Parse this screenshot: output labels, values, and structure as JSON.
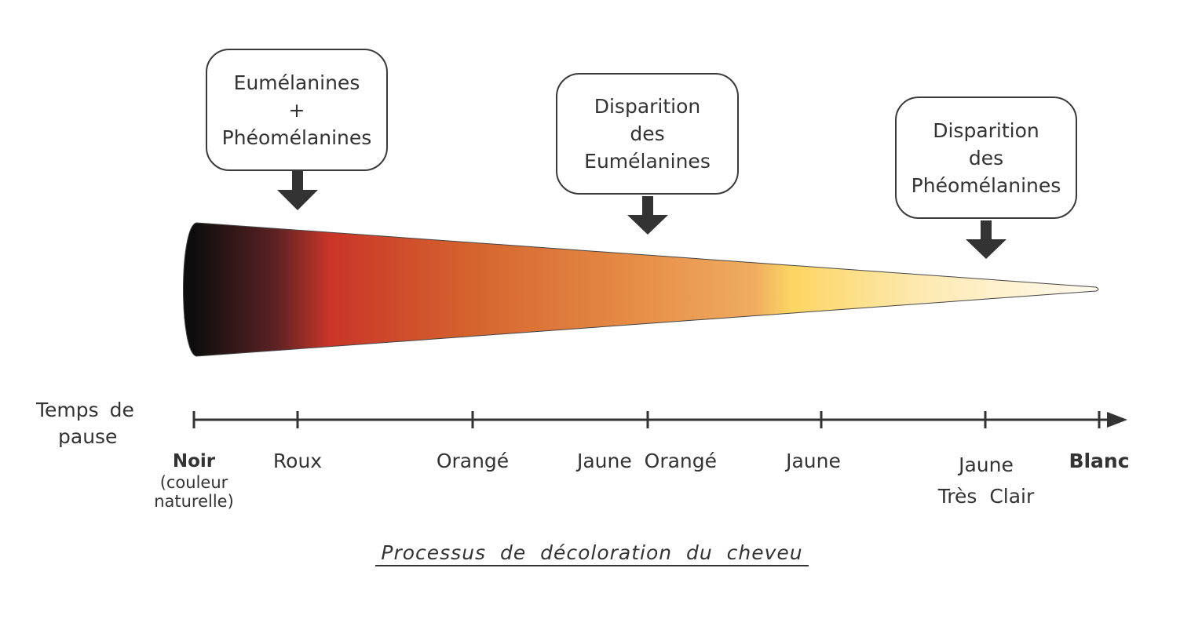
{
  "callouts": [
    {
      "lines": [
        "Eumélanines",
        "+",
        "Phéomélanines"
      ]
    },
    {
      "lines": [
        "Disparition",
        "des",
        "Eumélanines"
      ]
    },
    {
      "lines": [
        "Disparition",
        "des",
        "Phéomélanines"
      ]
    }
  ],
  "gradient_colors": [
    "#0d0d0d",
    "#5c2224",
    "#c93528",
    "#d4622d",
    "#e58b45",
    "#f0ad62",
    "#fcd561",
    "#fde9b0",
    "#fffaf0"
  ],
  "axis_title": [
    "Temps de",
    "pause"
  ],
  "stages": [
    {
      "lines": [
        "Noir"
      ],
      "note": [
        "(couleur",
        "naturelle)"
      ],
      "bold": true
    },
    {
      "lines": [
        "Roux"
      ]
    },
    {
      "lines": [
        "Orangé"
      ]
    },
    {
      "lines": [
        "Jaune  Orangé"
      ]
    },
    {
      "lines": [
        "Jaune"
      ]
    },
    {
      "lines": [
        "Jaune",
        "Très  Clair"
      ]
    },
    {
      "lines": [
        "Blanc"
      ],
      "bold": true
    }
  ],
  "caption": "Processus  de  décoloration  du  cheveu"
}
